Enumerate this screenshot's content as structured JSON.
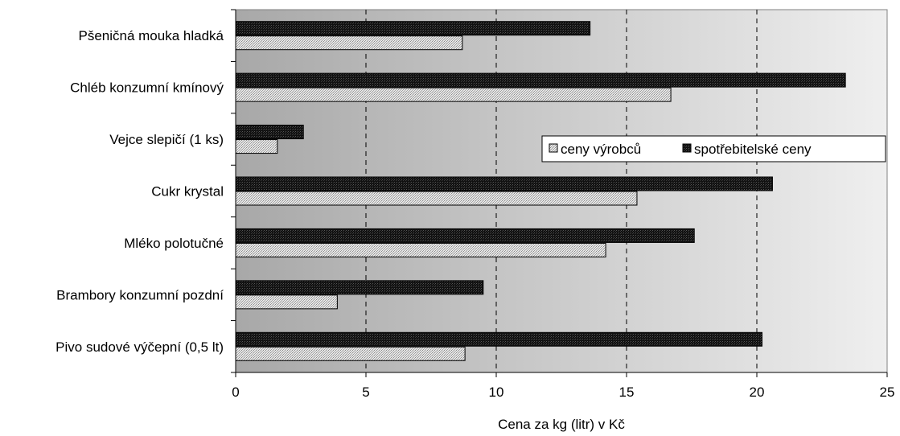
{
  "chart_data": {
    "type": "bar",
    "orientation": "horizontal",
    "categories": [
      "Pšeničná mouka hladká",
      "Chléb konzumní kmínový",
      "Vejce slepičí (1 ks)",
      "Cukr krystal",
      "Mléko polotučné",
      "Brambory konzumní pozdní",
      "Pivo sudové výčepní (0,5 lt)"
    ],
    "series": [
      {
        "name": "ceny výrobců",
        "color": "#d2d2d2",
        "values": [
          8.7,
          16.7,
          1.6,
          15.4,
          14.2,
          3.9,
          8.8
        ]
      },
      {
        "name": "spotřebitelské ceny",
        "color": "#1e1e1e",
        "values": [
          13.6,
          23.4,
          2.6,
          20.6,
          17.6,
          9.5,
          20.2
        ]
      }
    ],
    "xlim": [
      0,
      25
    ],
    "xticks": [
      "0",
      "5",
      "10",
      "15",
      "20",
      "25"
    ],
    "xlabel": "Cena za kg (litr) v Kč",
    "ylabel": "",
    "title": "",
    "grid": "vertical dashed",
    "legend_position": "right",
    "plot_background": "#c0c0c0 gradient"
  }
}
